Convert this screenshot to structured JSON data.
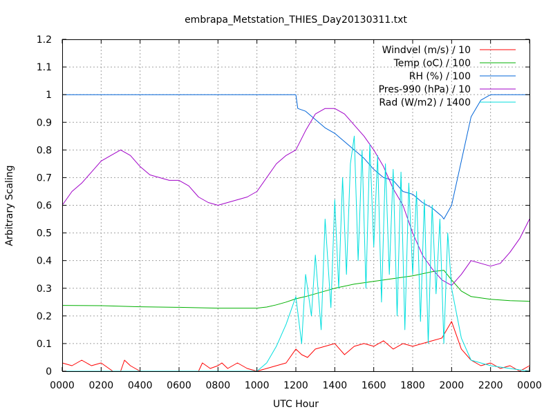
{
  "chart_data": {
    "type": "line",
    "title": "embrapa_Metstation_THIES_Day20130311.txt",
    "xlabel": "UTC Hour",
    "ylabel": "Arbitrary Scaling",
    "xlim": [
      0,
      2400
    ],
    "ylim": [
      0,
      1.2
    ],
    "grid": true,
    "legend_position": "top-right",
    "x_tick_labels": [
      "0000",
      "0200",
      "0400",
      "0600",
      "0800",
      "1000",
      "1200",
      "1400",
      "1600",
      "1800",
      "2000",
      "2200",
      "0000"
    ],
    "y_tick_labels": [
      "0",
      "0.1",
      "0.2",
      "0.3",
      "0.4",
      "0.5",
      "0.6",
      "0.7",
      "0.8",
      "0.9",
      "1",
      "1.1",
      "1.2"
    ],
    "series": [
      {
        "name": "Windvel (m/s) / 10",
        "color": "#ff0000",
        "x": [
          0,
          50,
          100,
          150,
          200,
          260,
          300,
          320,
          350,
          400,
          500,
          700,
          720,
          760,
          800,
          820,
          850,
          900,
          950,
          1000,
          1050,
          1100,
          1150,
          1200,
          1230,
          1260,
          1300,
          1350,
          1400,
          1450,
          1500,
          1550,
          1600,
          1650,
          1700,
          1750,
          1800,
          1850,
          1900,
          1950,
          2000,
          2050,
          2100,
          2150,
          2200,
          2250,
          2300,
          2350,
          2400
        ],
        "y": [
          0.03,
          0.02,
          0.04,
          0.02,
          0.03,
          0.0,
          0.0,
          0.04,
          0.02,
          0.0,
          0.0,
          0.0,
          0.03,
          0.01,
          0.02,
          0.03,
          0.01,
          0.03,
          0.01,
          0.0,
          0.01,
          0.02,
          0.03,
          0.08,
          0.06,
          0.05,
          0.08,
          0.09,
          0.1,
          0.06,
          0.09,
          0.1,
          0.09,
          0.11,
          0.08,
          0.1,
          0.09,
          0.1,
          0.11,
          0.12,
          0.18,
          0.08,
          0.04,
          0.02,
          0.03,
          0.01,
          0.02,
          0.0,
          0.02
        ]
      },
      {
        "name": "Temp (oC) / 100",
        "color": "#00b000",
        "x": [
          0,
          200,
          400,
          600,
          800,
          900,
          1000,
          1050,
          1100,
          1150,
          1200,
          1250,
          1300,
          1400,
          1500,
          1600,
          1700,
          1800,
          1900,
          1960,
          2000,
          2050,
          2100,
          2200,
          2300,
          2400
        ],
        "y": [
          0.238,
          0.237,
          0.233,
          0.231,
          0.228,
          0.228,
          0.228,
          0.232,
          0.24,
          0.25,
          0.262,
          0.27,
          0.28,
          0.3,
          0.315,
          0.325,
          0.335,
          0.345,
          0.36,
          0.365,
          0.33,
          0.29,
          0.27,
          0.26,
          0.255,
          0.253
        ]
      },
      {
        "name": "RH (%) / 100",
        "color": "#0064d8",
        "x": [
          0,
          1200,
          1210,
          1250,
          1300,
          1350,
          1400,
          1450,
          1500,
          1550,
          1600,
          1650,
          1700,
          1750,
          1800,
          1850,
          1900,
          1950,
          1960,
          2000,
          2050,
          2100,
          2150,
          2200,
          2300,
          2400
        ],
        "y": [
          1.0,
          1.0,
          0.95,
          0.94,
          0.91,
          0.88,
          0.86,
          0.83,
          0.8,
          0.77,
          0.73,
          0.7,
          0.69,
          0.65,
          0.64,
          0.61,
          0.59,
          0.56,
          0.55,
          0.6,
          0.76,
          0.92,
          0.98,
          1.0,
          1.0,
          1.0
        ]
      },
      {
        "name": "Pres-990 (hPa) / 10",
        "color": "#a000c8",
        "x": [
          0,
          50,
          100,
          150,
          200,
          250,
          300,
          350,
          400,
          450,
          500,
          550,
          600,
          650,
          700,
          750,
          800,
          850,
          900,
          950,
          1000,
          1050,
          1100,
          1150,
          1200,
          1250,
          1300,
          1350,
          1400,
          1450,
          1500,
          1550,
          1600,
          1650,
          1700,
          1750,
          1800,
          1850,
          1900,
          1950,
          2000,
          2050,
          2100,
          2150,
          2200,
          2250,
          2300,
          2350,
          2400
        ],
        "y": [
          0.6,
          0.65,
          0.68,
          0.72,
          0.76,
          0.78,
          0.8,
          0.78,
          0.74,
          0.71,
          0.7,
          0.69,
          0.69,
          0.67,
          0.63,
          0.61,
          0.6,
          0.61,
          0.62,
          0.63,
          0.65,
          0.7,
          0.75,
          0.78,
          0.8,
          0.87,
          0.93,
          0.95,
          0.95,
          0.93,
          0.89,
          0.85,
          0.8,
          0.74,
          0.66,
          0.6,
          0.5,
          0.42,
          0.37,
          0.33,
          0.31,
          0.35,
          0.4,
          0.39,
          0.38,
          0.39,
          0.43,
          0.48,
          0.55
        ]
      },
      {
        "name": "Rad (W/m2) / 1400",
        "color": "#00dede",
        "x": [
          0,
          1000,
          1050,
          1100,
          1150,
          1200,
          1230,
          1250,
          1280,
          1300,
          1330,
          1350,
          1380,
          1400,
          1420,
          1440,
          1460,
          1480,
          1500,
          1520,
          1540,
          1560,
          1580,
          1600,
          1620,
          1640,
          1660,
          1680,
          1700,
          1720,
          1740,
          1760,
          1780,
          1800,
          1820,
          1840,
          1860,
          1880,
          1900,
          1920,
          1940,
          1960,
          1980,
          2000,
          2050,
          2100,
          2200,
          2300,
          2400
        ],
        "y": [
          0.0,
          0.0,
          0.03,
          0.09,
          0.17,
          0.27,
          0.1,
          0.35,
          0.2,
          0.42,
          0.15,
          0.55,
          0.23,
          0.62,
          0.3,
          0.7,
          0.35,
          0.75,
          0.85,
          0.4,
          0.8,
          0.3,
          0.82,
          0.45,
          0.78,
          0.25,
          0.75,
          0.35,
          0.73,
          0.2,
          0.72,
          0.15,
          0.68,
          0.35,
          0.65,
          0.18,
          0.62,
          0.1,
          0.6,
          0.28,
          0.55,
          0.1,
          0.5,
          0.3,
          0.12,
          0.04,
          0.02,
          0.01,
          0.0
        ]
      }
    ]
  }
}
